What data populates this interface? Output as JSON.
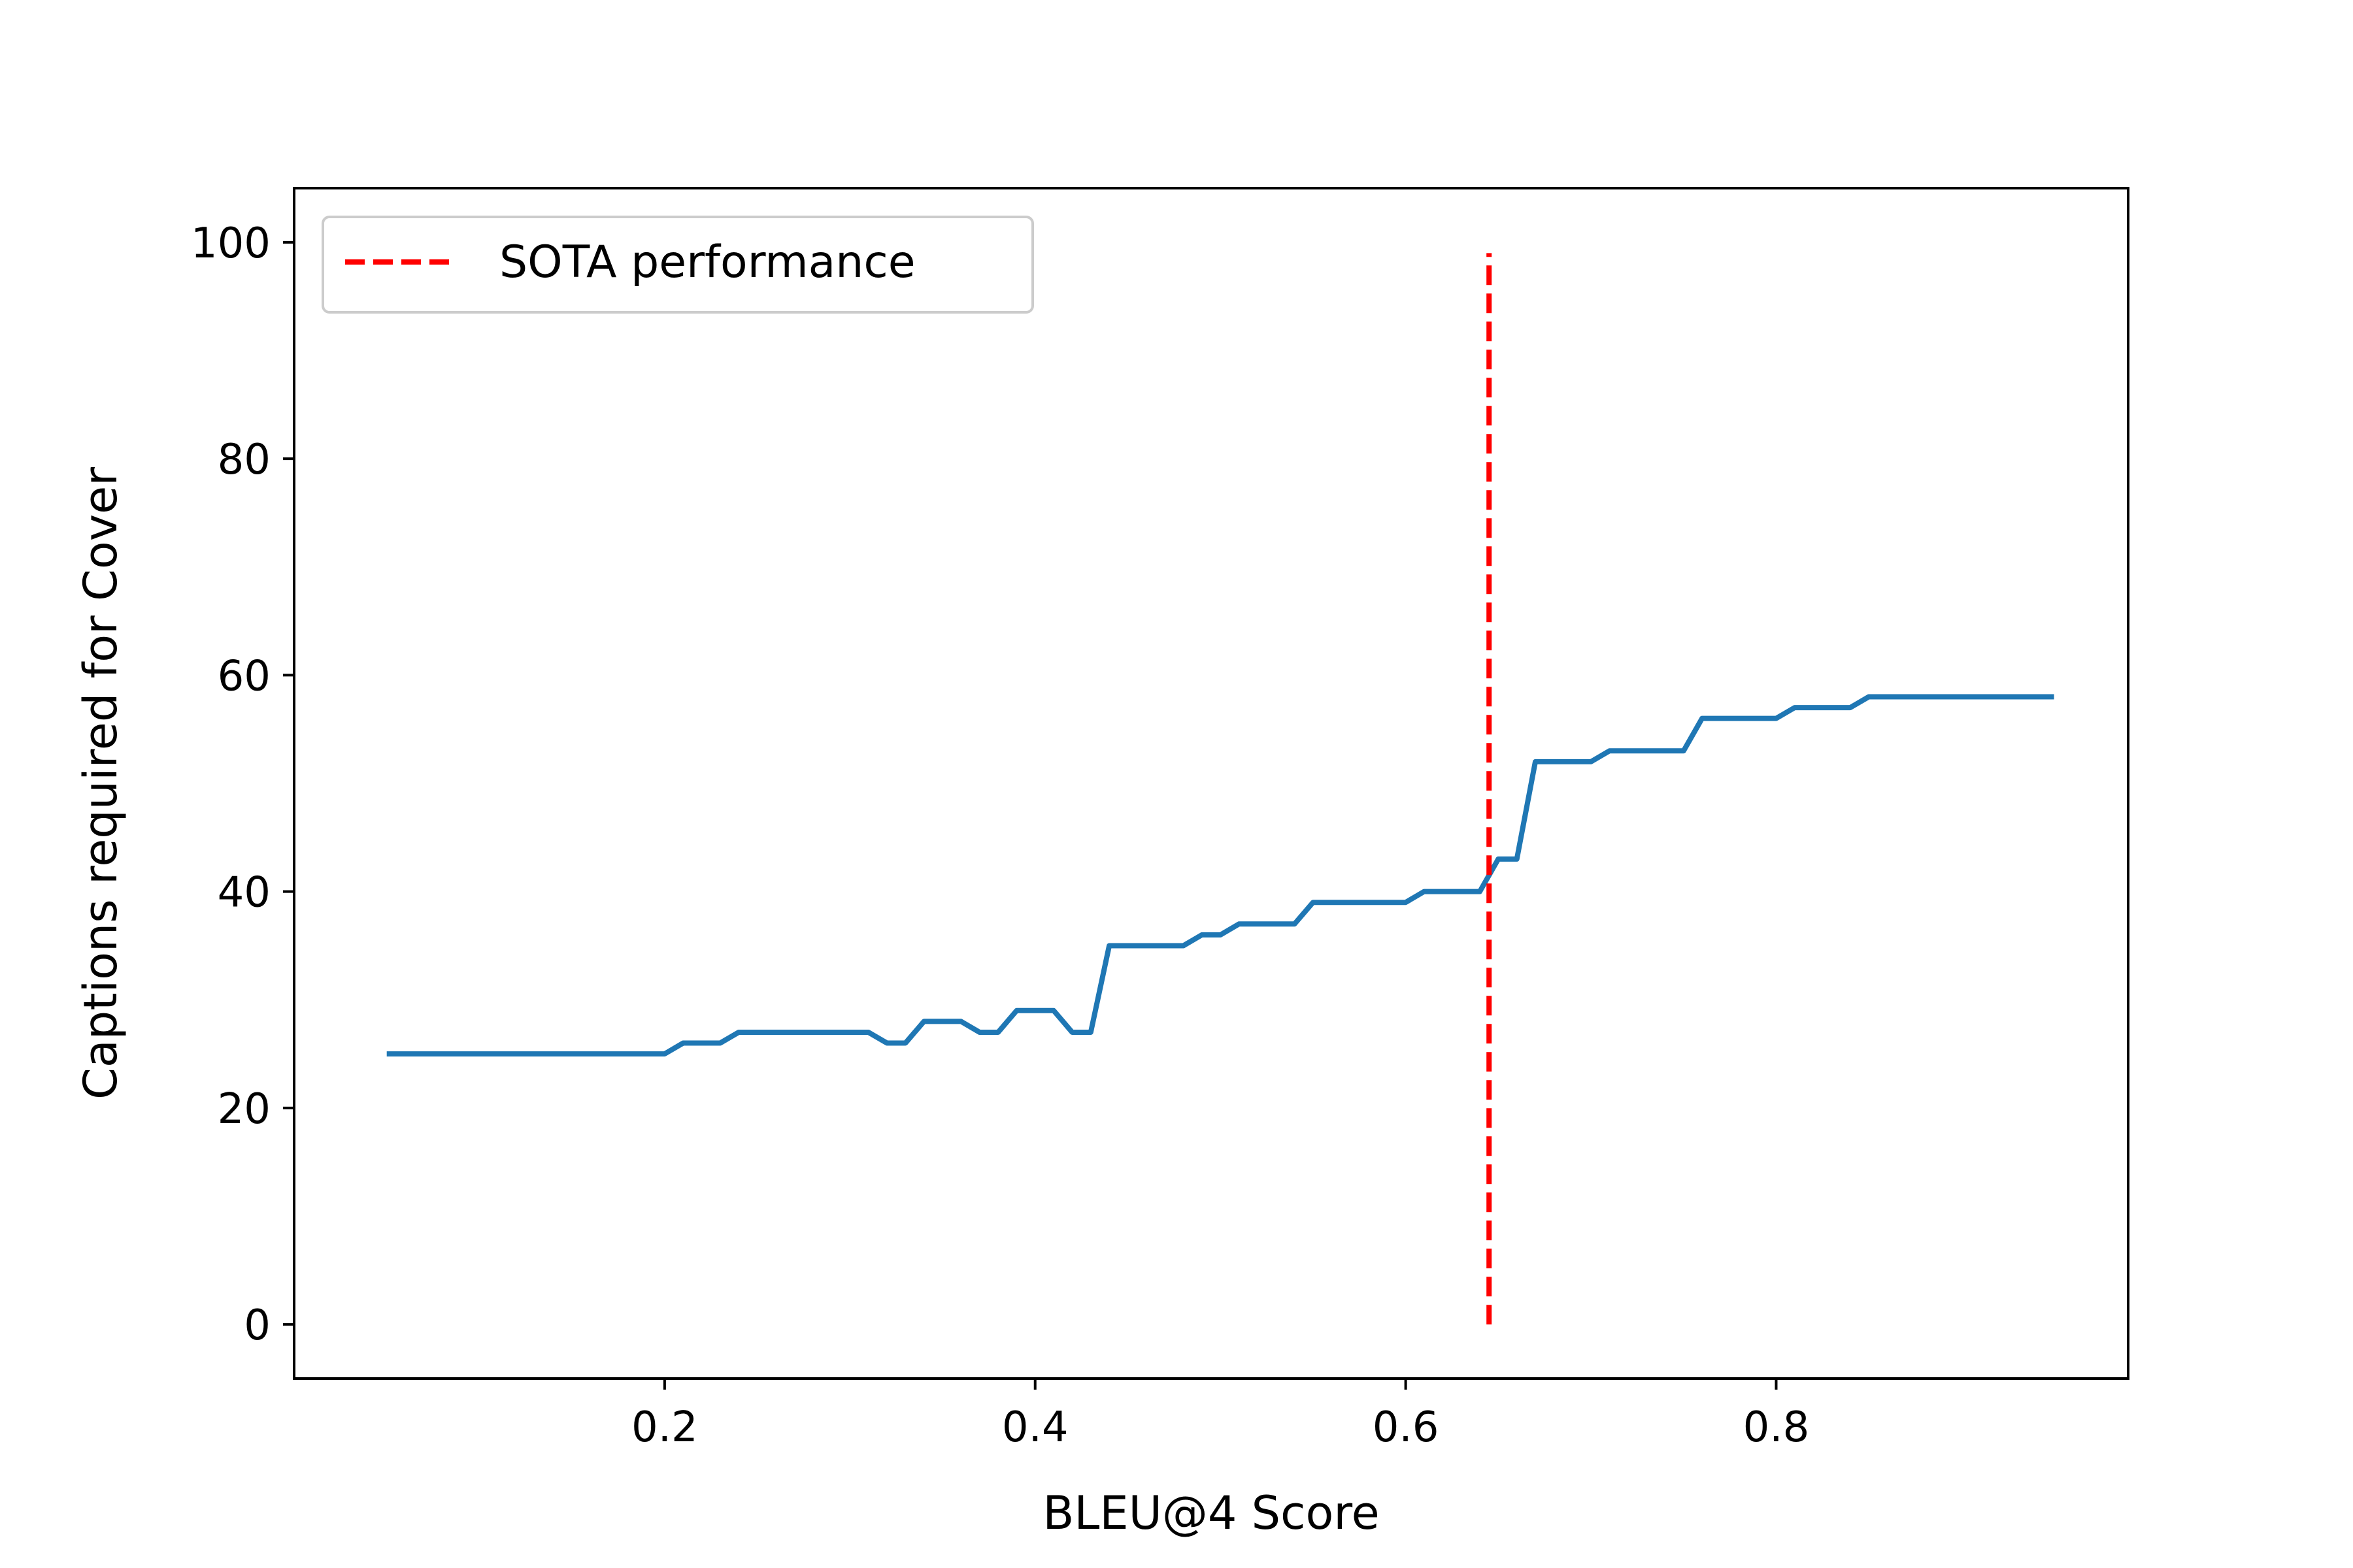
{
  "chart_data": {
    "type": "line",
    "title": "",
    "xlabel": "BLEU@4 Score",
    "ylabel": "Captions required for Cover",
    "xlim": [
      0.0,
      0.99
    ],
    "ylim": [
      -5,
      105
    ],
    "x_ticks": [
      0.2,
      0.4,
      0.6,
      0.8
    ],
    "x_tick_labels": [
      "0.2",
      "0.4",
      "0.6",
      "0.8"
    ],
    "y_ticks": [
      0,
      20,
      40,
      60,
      80,
      100
    ],
    "y_tick_labels": [
      "0",
      "20",
      "40",
      "60",
      "80",
      "100"
    ],
    "grid": false,
    "legend": {
      "placement": "upper-left",
      "entries": [
        "SOTA performance"
      ]
    },
    "series": [
      {
        "color": "#1f77b4",
        "style": "solid",
        "points": [
          [
            0.05,
            25
          ],
          [
            0.06,
            25
          ],
          [
            0.07,
            25
          ],
          [
            0.08,
            25
          ],
          [
            0.09,
            25
          ],
          [
            0.1,
            25
          ],
          [
            0.11,
            25
          ],
          [
            0.12,
            25
          ],
          [
            0.13,
            25
          ],
          [
            0.14,
            25
          ],
          [
            0.15,
            25
          ],
          [
            0.16,
            25
          ],
          [
            0.17,
            25
          ],
          [
            0.18,
            25
          ],
          [
            0.19,
            25
          ],
          [
            0.2,
            25
          ],
          [
            0.21,
            26
          ],
          [
            0.22,
            26
          ],
          [
            0.23,
            26
          ],
          [
            0.24,
            27
          ],
          [
            0.25,
            27
          ],
          [
            0.26,
            27
          ],
          [
            0.27,
            27
          ],
          [
            0.28,
            27
          ],
          [
            0.29,
            27
          ],
          [
            0.3,
            27
          ],
          [
            0.31,
            27
          ],
          [
            0.32,
            26
          ],
          [
            0.33,
            26
          ],
          [
            0.34,
            28
          ],
          [
            0.35,
            28
          ],
          [
            0.36,
            28
          ],
          [
            0.37,
            27
          ],
          [
            0.38,
            27
          ],
          [
            0.39,
            29
          ],
          [
            0.4,
            29
          ],
          [
            0.41,
            29
          ],
          [
            0.42,
            27
          ],
          [
            0.43,
            27
          ],
          [
            0.44,
            35
          ],
          [
            0.45,
            35
          ],
          [
            0.46,
            35
          ],
          [
            0.47,
            35
          ],
          [
            0.48,
            35
          ],
          [
            0.49,
            36
          ],
          [
            0.5,
            36
          ],
          [
            0.51,
            37
          ],
          [
            0.52,
            37
          ],
          [
            0.53,
            37
          ],
          [
            0.54,
            37
          ],
          [
            0.55,
            39
          ],
          [
            0.56,
            39
          ],
          [
            0.57,
            39
          ],
          [
            0.58,
            39
          ],
          [
            0.59,
            39
          ],
          [
            0.6,
            39
          ],
          [
            0.61,
            40
          ],
          [
            0.62,
            40
          ],
          [
            0.63,
            40
          ],
          [
            0.64,
            40
          ],
          [
            0.65,
            43
          ],
          [
            0.66,
            43
          ],
          [
            0.67,
            52
          ],
          [
            0.68,
            52
          ],
          [
            0.69,
            52
          ],
          [
            0.7,
            52
          ],
          [
            0.71,
            53
          ],
          [
            0.72,
            53
          ],
          [
            0.73,
            53
          ],
          [
            0.74,
            53
          ],
          [
            0.75,
            53
          ],
          [
            0.76,
            56
          ],
          [
            0.77,
            56
          ],
          [
            0.78,
            56
          ],
          [
            0.79,
            56
          ],
          [
            0.8,
            56
          ],
          [
            0.81,
            57
          ],
          [
            0.82,
            57
          ],
          [
            0.83,
            57
          ],
          [
            0.84,
            57
          ],
          [
            0.85,
            58
          ],
          [
            0.86,
            58
          ],
          [
            0.87,
            58
          ],
          [
            0.88,
            58
          ],
          [
            0.89,
            58
          ],
          [
            0.9,
            58
          ],
          [
            0.91,
            58
          ],
          [
            0.92,
            58
          ],
          [
            0.93,
            58
          ],
          [
            0.94,
            58
          ],
          [
            0.95,
            58
          ]
        ]
      },
      {
        "name": "SOTA performance",
        "color": "#ff0000",
        "style": "dashed",
        "points": [
          [
            0.645,
            0
          ],
          [
            0.645,
            99
          ]
        ]
      }
    ]
  }
}
